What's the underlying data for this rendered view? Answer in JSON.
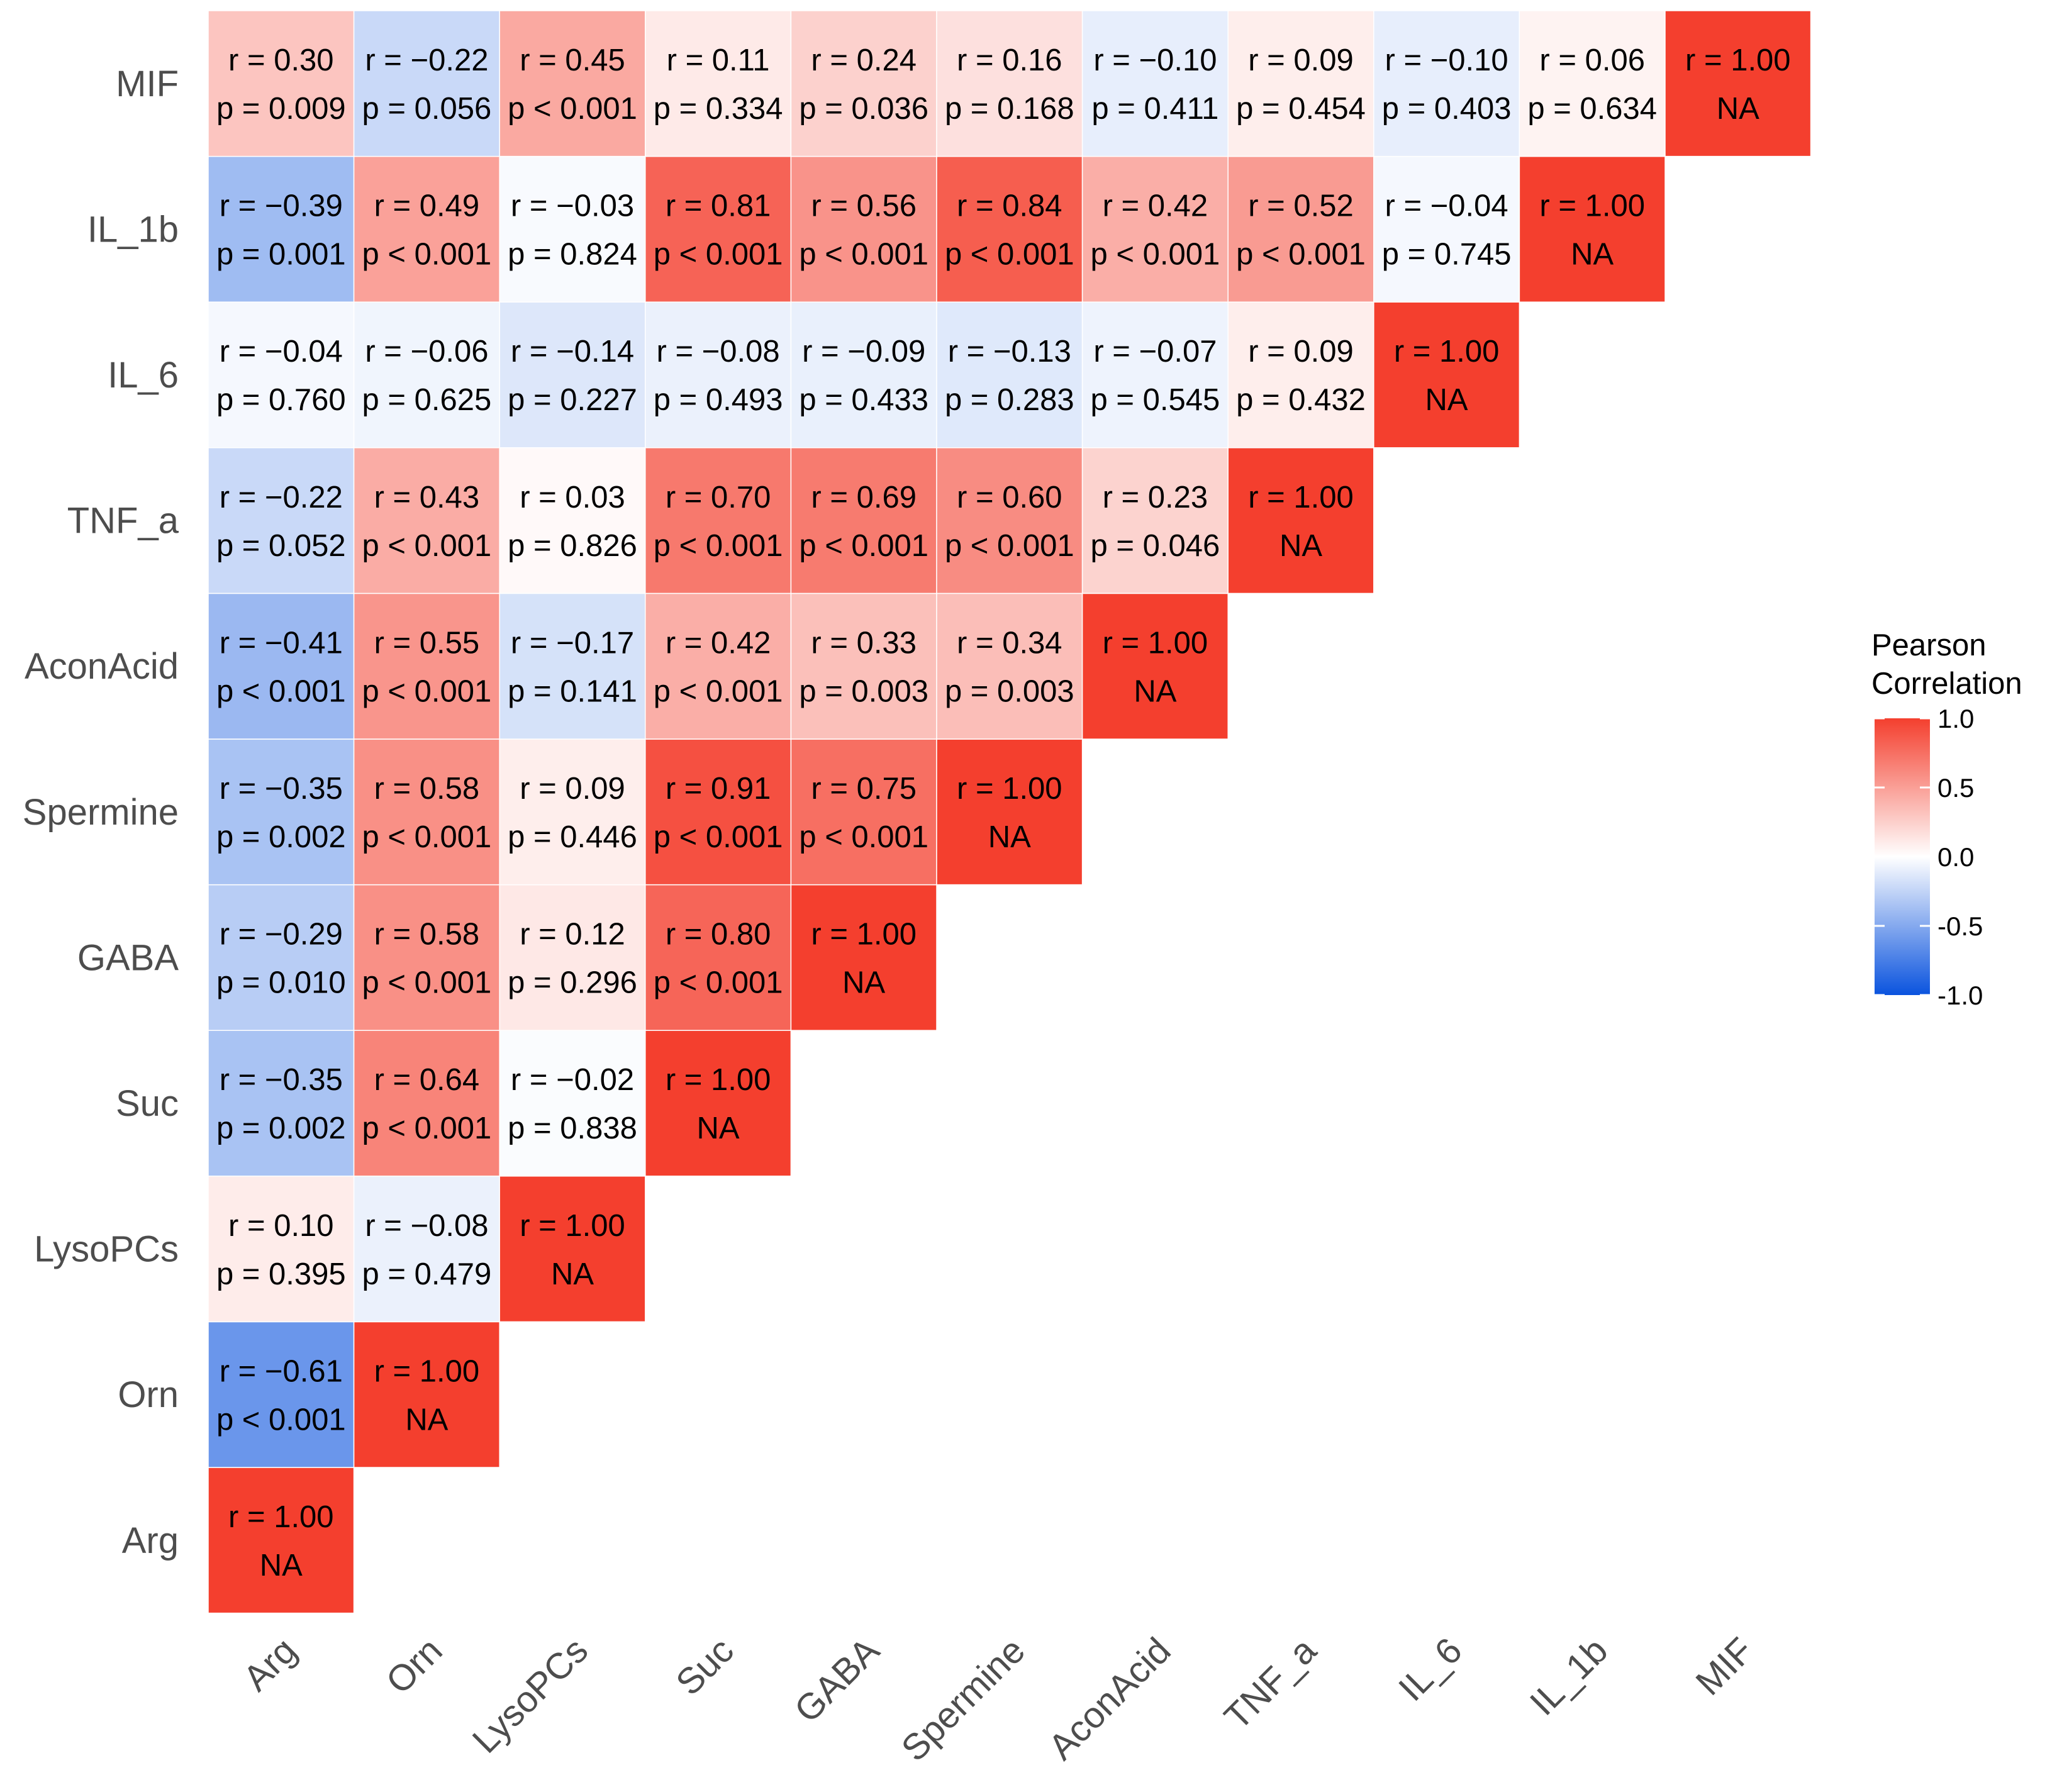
{
  "chart_data": {
    "type": "heatmap",
    "variables": [
      "Arg",
      "Orn",
      "LysoPCs",
      "Suc",
      "GABA",
      "Spermine",
      "AconAcid",
      "TNF_a",
      "IL_6",
      "IL_1b",
      "MIF"
    ],
    "legend": {
      "title_line1": "Pearson",
      "title_line2": "Correlation",
      "ticks": [
        "1.0",
        "0.5",
        "0.0",
        "-0.5",
        "-1.0"
      ],
      "tick_values": [
        1.0,
        0.5,
        0.0,
        -0.5,
        -1.0
      ],
      "placement": "right",
      "low_color": "#0a53de",
      "mid_color": "#ffffff",
      "high_color": "#f43f2e",
      "limits": [
        -1,
        1
      ]
    },
    "cells": [
      {
        "row": "Arg",
        "col": "Arg",
        "r": 1.0,
        "r_label": "r = 1.00",
        "p_label": "NA"
      },
      {
        "row": "Orn",
        "col": "Arg",
        "r": -0.61,
        "r_label": "r = −0.61",
        "p_label": "p < 0.001"
      },
      {
        "row": "Orn",
        "col": "Orn",
        "r": 1.0,
        "r_label": "r = 1.00",
        "p_label": "NA"
      },
      {
        "row": "LysoPCs",
        "col": "Arg",
        "r": 0.1,
        "r_label": "r = 0.10",
        "p_label": "p = 0.395"
      },
      {
        "row": "LysoPCs",
        "col": "Orn",
        "r": -0.08,
        "r_label": "r = −0.08",
        "p_label": "p = 0.479"
      },
      {
        "row": "LysoPCs",
        "col": "LysoPCs",
        "r": 1.0,
        "r_label": "r = 1.00",
        "p_label": "NA"
      },
      {
        "row": "Suc",
        "col": "Arg",
        "r": -0.35,
        "r_label": "r = −0.35",
        "p_label": "p = 0.002"
      },
      {
        "row": "Suc",
        "col": "Orn",
        "r": 0.64,
        "r_label": "r = 0.64",
        "p_label": "p < 0.001"
      },
      {
        "row": "Suc",
        "col": "LysoPCs",
        "r": -0.02,
        "r_label": "r = −0.02",
        "p_label": "p = 0.838"
      },
      {
        "row": "Suc",
        "col": "Suc",
        "r": 1.0,
        "r_label": "r = 1.00",
        "p_label": "NA"
      },
      {
        "row": "GABA",
        "col": "Arg",
        "r": -0.29,
        "r_label": "r = −0.29",
        "p_label": "p = 0.010"
      },
      {
        "row": "GABA",
        "col": "Orn",
        "r": 0.58,
        "r_label": "r = 0.58",
        "p_label": "p < 0.001"
      },
      {
        "row": "GABA",
        "col": "LysoPCs",
        "r": 0.12,
        "r_label": "r = 0.12",
        "p_label": "p = 0.296"
      },
      {
        "row": "GABA",
        "col": "Suc",
        "r": 0.8,
        "r_label": "r = 0.80",
        "p_label": "p < 0.001"
      },
      {
        "row": "GABA",
        "col": "GABA",
        "r": 1.0,
        "r_label": "r = 1.00",
        "p_label": "NA"
      },
      {
        "row": "Spermine",
        "col": "Arg",
        "r": -0.35,
        "r_label": "r = −0.35",
        "p_label": "p = 0.002"
      },
      {
        "row": "Spermine",
        "col": "Orn",
        "r": 0.58,
        "r_label": "r = 0.58",
        "p_label": "p < 0.001"
      },
      {
        "row": "Spermine",
        "col": "LysoPCs",
        "r": 0.09,
        "r_label": "r = 0.09",
        "p_label": "p = 0.446"
      },
      {
        "row": "Spermine",
        "col": "Suc",
        "r": 0.91,
        "r_label": "r = 0.91",
        "p_label": "p < 0.001"
      },
      {
        "row": "Spermine",
        "col": "GABA",
        "r": 0.75,
        "r_label": "r = 0.75",
        "p_label": "p < 0.001"
      },
      {
        "row": "Spermine",
        "col": "Spermine",
        "r": 1.0,
        "r_label": "r = 1.00",
        "p_label": "NA"
      },
      {
        "row": "AconAcid",
        "col": "Arg",
        "r": -0.41,
        "r_label": "r = −0.41",
        "p_label": "p < 0.001"
      },
      {
        "row": "AconAcid",
        "col": "Orn",
        "r": 0.55,
        "r_label": "r = 0.55",
        "p_label": "p < 0.001"
      },
      {
        "row": "AconAcid",
        "col": "LysoPCs",
        "r": -0.17,
        "r_label": "r = −0.17",
        "p_label": "p = 0.141"
      },
      {
        "row": "AconAcid",
        "col": "Suc",
        "r": 0.42,
        "r_label": "r = 0.42",
        "p_label": "p < 0.001"
      },
      {
        "row": "AconAcid",
        "col": "GABA",
        "r": 0.33,
        "r_label": "r = 0.33",
        "p_label": "p = 0.003"
      },
      {
        "row": "AconAcid",
        "col": "Spermine",
        "r": 0.34,
        "r_label": "r = 0.34",
        "p_label": "p = 0.003"
      },
      {
        "row": "AconAcid",
        "col": "AconAcid",
        "r": 1.0,
        "r_label": "r = 1.00",
        "p_label": "NA"
      },
      {
        "row": "TNF_a",
        "col": "Arg",
        "r": -0.22,
        "r_label": "r = −0.22",
        "p_label": "p = 0.052"
      },
      {
        "row": "TNF_a",
        "col": "Orn",
        "r": 0.43,
        "r_label": "r = 0.43",
        "p_label": "p < 0.001"
      },
      {
        "row": "TNF_a",
        "col": "LysoPCs",
        "r": 0.03,
        "r_label": "r = 0.03",
        "p_label": "p = 0.826"
      },
      {
        "row": "TNF_a",
        "col": "Suc",
        "r": 0.7,
        "r_label": "r = 0.70",
        "p_label": "p < 0.001"
      },
      {
        "row": "TNF_a",
        "col": "GABA",
        "r": 0.69,
        "r_label": "r = 0.69",
        "p_label": "p < 0.001"
      },
      {
        "row": "TNF_a",
        "col": "Spermine",
        "r": 0.6,
        "r_label": "r = 0.60",
        "p_label": "p < 0.001"
      },
      {
        "row": "TNF_a",
        "col": "AconAcid",
        "r": 0.23,
        "r_label": "r = 0.23",
        "p_label": "p = 0.046"
      },
      {
        "row": "TNF_a",
        "col": "TNF_a",
        "r": 1.0,
        "r_label": "r = 1.00",
        "p_label": "NA"
      },
      {
        "row": "IL_6",
        "col": "Arg",
        "r": -0.04,
        "r_label": "r = −0.04",
        "p_label": "p = 0.760"
      },
      {
        "row": "IL_6",
        "col": "Orn",
        "r": -0.06,
        "r_label": "r = −0.06",
        "p_label": "p = 0.625"
      },
      {
        "row": "IL_6",
        "col": "LysoPCs",
        "r": -0.14,
        "r_label": "r = −0.14",
        "p_label": "p = 0.227"
      },
      {
        "row": "IL_6",
        "col": "Suc",
        "r": -0.08,
        "r_label": "r = −0.08",
        "p_label": "p = 0.493"
      },
      {
        "row": "IL_6",
        "col": "GABA",
        "r": -0.09,
        "r_label": "r = −0.09",
        "p_label": "p = 0.433"
      },
      {
        "row": "IL_6",
        "col": "Spermine",
        "r": -0.13,
        "r_label": "r = −0.13",
        "p_label": "p = 0.283"
      },
      {
        "row": "IL_6",
        "col": "AconAcid",
        "r": -0.07,
        "r_label": "r = −0.07",
        "p_label": "p = 0.545"
      },
      {
        "row": "IL_6",
        "col": "TNF_a",
        "r": 0.09,
        "r_label": "r = 0.09",
        "p_label": "p = 0.432"
      },
      {
        "row": "IL_6",
        "col": "IL_6",
        "r": 1.0,
        "r_label": "r = 1.00",
        "p_label": "NA"
      },
      {
        "row": "IL_1b",
        "col": "Arg",
        "r": -0.39,
        "r_label": "r = −0.39",
        "p_label": "p = 0.001"
      },
      {
        "row": "IL_1b",
        "col": "Orn",
        "r": 0.49,
        "r_label": "r = 0.49",
        "p_label": "p < 0.001"
      },
      {
        "row": "IL_1b",
        "col": "LysoPCs",
        "r": -0.03,
        "r_label": "r = −0.03",
        "p_label": "p = 0.824"
      },
      {
        "row": "IL_1b",
        "col": "Suc",
        "r": 0.81,
        "r_label": "r = 0.81",
        "p_label": "p < 0.001"
      },
      {
        "row": "IL_1b",
        "col": "GABA",
        "r": 0.56,
        "r_label": "r = 0.56",
        "p_label": "p < 0.001"
      },
      {
        "row": "IL_1b",
        "col": "Spermine",
        "r": 0.84,
        "r_label": "r = 0.84",
        "p_label": "p < 0.001"
      },
      {
        "row": "IL_1b",
        "col": "AconAcid",
        "r": 0.42,
        "r_label": "r = 0.42",
        "p_label": "p < 0.001"
      },
      {
        "row": "IL_1b",
        "col": "TNF_a",
        "r": 0.52,
        "r_label": "r = 0.52",
        "p_label": "p < 0.001"
      },
      {
        "row": "IL_1b",
        "col": "IL_6",
        "r": -0.04,
        "r_label": "r = −0.04",
        "p_label": "p = 0.745"
      },
      {
        "row": "IL_1b",
        "col": "IL_1b",
        "r": 1.0,
        "r_label": "r = 1.00",
        "p_label": "NA"
      },
      {
        "row": "MIF",
        "col": "Arg",
        "r": 0.3,
        "r_label": "r = 0.30",
        "p_label": "p = 0.009"
      },
      {
        "row": "MIF",
        "col": "Orn",
        "r": -0.22,
        "r_label": "r = −0.22",
        "p_label": "p = 0.056"
      },
      {
        "row": "MIF",
        "col": "LysoPCs",
        "r": 0.45,
        "r_label": "r = 0.45",
        "p_label": "p < 0.001"
      },
      {
        "row": "MIF",
        "col": "Suc",
        "r": 0.11,
        "r_label": "r = 0.11",
        "p_label": "p = 0.334"
      },
      {
        "row": "MIF",
        "col": "GABA",
        "r": 0.24,
        "r_label": "r = 0.24",
        "p_label": "p = 0.036"
      },
      {
        "row": "MIF",
        "col": "Spermine",
        "r": 0.16,
        "r_label": "r = 0.16",
        "p_label": "p = 0.168"
      },
      {
        "row": "MIF",
        "col": "AconAcid",
        "r": -0.1,
        "r_label": "r = −0.10",
        "p_label": "p = 0.411"
      },
      {
        "row": "MIF",
        "col": "TNF_a",
        "r": 0.09,
        "r_label": "r = 0.09",
        "p_label": "p = 0.454"
      },
      {
        "row": "MIF",
        "col": "IL_6",
        "r": -0.1,
        "r_label": "r = −0.10",
        "p_label": "p = 0.403"
      },
      {
        "row": "MIF",
        "col": "IL_1b",
        "r": 0.06,
        "r_label": "r = 0.06",
        "p_label": "p = 0.634"
      },
      {
        "row": "MIF",
        "col": "MIF",
        "r": 1.0,
        "r_label": "r = 1.00",
        "p_label": "NA"
      }
    ]
  }
}
